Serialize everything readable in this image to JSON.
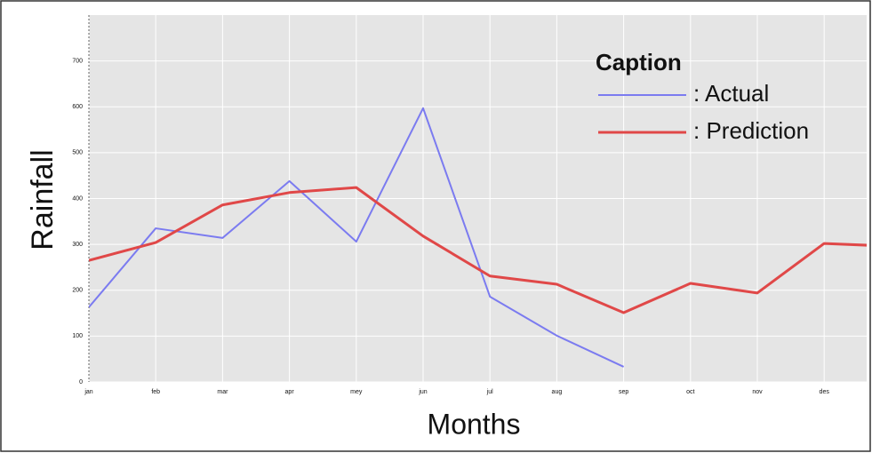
{
  "chart_data": {
    "type": "line",
    "xlabel": "Months",
    "ylabel": "Rainfall",
    "legend_title": "Caption",
    "legend": "upper right",
    "categories": [
      "jan",
      "feb",
      "mar",
      "apr",
      "mey",
      "jun",
      "jul",
      "aug",
      "sep",
      "oct",
      "nov",
      "des",
      null
    ],
    "series": [
      {
        "name": ": Actual",
        "color": "#7b7bf0",
        "values": [
          163,
          335,
          314,
          438,
          306,
          597,
          186,
          101,
          33,
          null,
          null,
          null,
          null
        ]
      },
      {
        "name": ": Prediction",
        "color": "#e04848",
        "values": [
          265,
          304,
          386,
          413,
          424,
          318,
          231,
          213,
          151,
          215,
          194,
          302,
          296
        ]
      }
    ],
    "ylim": [
      0,
      800
    ],
    "yticks": [
      0,
      100,
      200,
      300,
      400,
      500,
      600,
      700
    ],
    "grid": true
  }
}
